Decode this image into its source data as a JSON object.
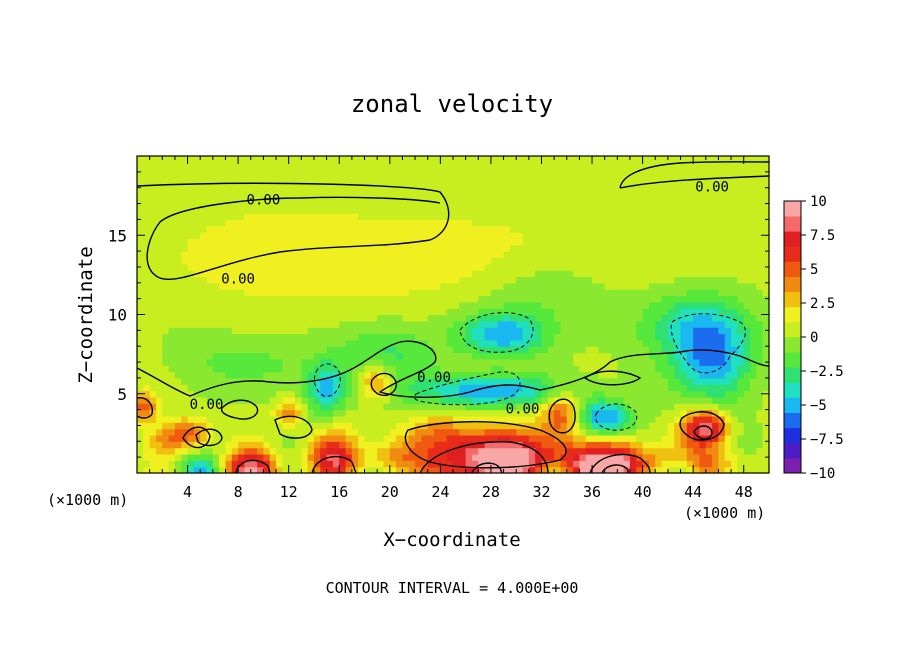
{
  "chart_data": {
    "type": "heatmap",
    "title": "zonal velocity",
    "xlabel": "X−coordinate",
    "ylabel": "Z−coordinate",
    "x_unit_left": "(×1000 m)",
    "x_unit_right": "(×1000 m)",
    "footer": "CONTOUR INTERVAL = 4.000E+00",
    "xlim": [
      0,
      50
    ],
    "ylim": [
      0,
      20
    ],
    "x_ticks": [
      {
        "value": 4,
        "label": "4"
      },
      {
        "value": 8,
        "label": "8"
      },
      {
        "value": 12,
        "label": "12"
      },
      {
        "value": 16,
        "label": "16"
      },
      {
        "value": 20,
        "label": "20"
      },
      {
        "value": 24,
        "label": "24"
      },
      {
        "value": 28,
        "label": "28"
      },
      {
        "value": 32,
        "label": "32"
      },
      {
        "value": 36,
        "label": "36"
      },
      {
        "value": 40,
        "label": "40"
      },
      {
        "value": 44,
        "label": "44"
      },
      {
        "value": 48,
        "label": "48"
      }
    ],
    "y_ticks": [
      {
        "value": 5,
        "label": "5"
      },
      {
        "value": 10,
        "label": "10"
      },
      {
        "value": 15,
        "label": "15"
      }
    ],
    "colorbar": {
      "min": -10,
      "max": 10,
      "tick_labels": [
        {
          "value": 10,
          "label": "10"
        },
        {
          "value": 7.5,
          "label": "7.5"
        },
        {
          "value": 5,
          "label": "5"
        },
        {
          "value": 2.5,
          "label": "2.5"
        },
        {
          "value": 0,
          "label": "0"
        },
        {
          "value": -2.5,
          "label": "−2.5"
        },
        {
          "value": -5,
          "label": "−5"
        },
        {
          "value": -7.5,
          "label": "−7.5"
        },
        {
          "value": -10,
          "label": "−10"
        }
      ],
      "colors": [
        "#7a1fb0",
        "#4b1cc4",
        "#1f2fe0",
        "#1b6df0",
        "#19b8f0",
        "#20e0c0",
        "#30e070",
        "#56e83a",
        "#8ae830",
        "#c8ee20",
        "#f0f020",
        "#f0c010",
        "#f08a10",
        "#f05a10",
        "#e82c1a",
        "#e02020",
        "#f46a6a",
        "#f8a6a6"
      ]
    },
    "contour_labels": [
      {
        "x": 10,
        "y": 17.2,
        "text": "0.00"
      },
      {
        "x": 8,
        "y": 12.2,
        "text": "0.00"
      },
      {
        "x": 45.5,
        "y": 18.0,
        "text": "0.00"
      },
      {
        "x": 5.5,
        "y": 4.3,
        "text": "0.00"
      },
      {
        "x": 23.5,
        "y": 6.0,
        "text": "0.00"
      },
      {
        "x": 30.5,
        "y": 4.0,
        "text": "0.00"
      }
    ],
    "features": [
      {
        "x": 25,
        "y": 13.5,
        "sx": 18,
        "sy": 3.5,
        "v": 1.8
      },
      {
        "x": 10,
        "y": 14,
        "sx": 8,
        "sy": 3,
        "v": 1.2
      },
      {
        "x": 29,
        "y": 8.8,
        "sx": 3.2,
        "sy": 1.3,
        "v": -5.5
      },
      {
        "x": 32,
        "y": 11.5,
        "sx": 6,
        "sy": 2.5,
        "v": -1.8
      },
      {
        "x": 45.5,
        "y": 7.2,
        "sx": 3.0,
        "sy": 2.4,
        "v": -5.5
      },
      {
        "x": 44,
        "y": 9.5,
        "sx": 4,
        "sy": 2,
        "v": -3.5
      },
      {
        "x": 28,
        "y": 5.2,
        "sx": 6,
        "sy": 1.0,
        "v": -5.5
      },
      {
        "x": 15,
        "y": 5.3,
        "sx": 1.5,
        "sy": 1.6,
        "v": -5.0
      },
      {
        "x": 37,
        "y": 3.5,
        "sx": 2.0,
        "sy": 1.1,
        "v": -6.0
      },
      {
        "x": 20,
        "y": 7.5,
        "sx": 4,
        "sy": 2,
        "v": -2.5
      },
      {
        "x": 9,
        "y": 7,
        "sx": 5,
        "sy": 1.5,
        "v": -1.5
      },
      {
        "x": 4,
        "y": 2.5,
        "sx": 1.8,
        "sy": 1.0,
        "v": 5
      },
      {
        "x": 0.5,
        "y": 4.2,
        "sx": 1.2,
        "sy": 1.0,
        "v": 5
      },
      {
        "x": 9,
        "y": 0.2,
        "sx": 2.0,
        "sy": 1.3,
        "v": 8.5
      },
      {
        "x": 15.5,
        "y": 1.0,
        "sx": 2.0,
        "sy": 1.5,
        "v": 8
      },
      {
        "x": 28.5,
        "y": 0.8,
        "sx": 5.0,
        "sy": 1.8,
        "v": 11
      },
      {
        "x": 37.5,
        "y": 0.5,
        "sx": 3.5,
        "sy": 1.4,
        "v": 11
      },
      {
        "x": 45,
        "y": 2.8,
        "sx": 1.8,
        "sy": 1.2,
        "v": 9
      },
      {
        "x": 33.5,
        "y": 3.8,
        "sx": 1.6,
        "sy": 1.5,
        "v": 5.5
      },
      {
        "x": 19,
        "y": 5.8,
        "sx": 1.4,
        "sy": 1.1,
        "v": 5
      },
      {
        "x": 12,
        "y": 3.8,
        "sx": 1.2,
        "sy": 0.9,
        "v": 4.5
      },
      {
        "x": 24,
        "y": 2.5,
        "sx": 3,
        "sy": 1.5,
        "v": 3
      },
      {
        "x": 45,
        "y": 0.5,
        "sx": 3,
        "sy": 1,
        "v": 4
      },
      {
        "x": 5,
        "y": 0.2,
        "sx": 1.3,
        "sy": 0.7,
        "v": -4
      },
      {
        "x": 33,
        "y": 0.2,
        "sx": 1.5,
        "sy": 0.8,
        "v": -3
      },
      {
        "x": 43,
        "y": 0.2,
        "sx": 1.5,
        "sy": 0.8,
        "v": -4
      },
      {
        "x": 20,
        "y": 1,
        "sx": 2,
        "sy": 1,
        "v": 3
      },
      {
        "x": 2,
        "y": 2,
        "sx": 1.5,
        "sy": 1,
        "v": 2.5
      }
    ]
  }
}
